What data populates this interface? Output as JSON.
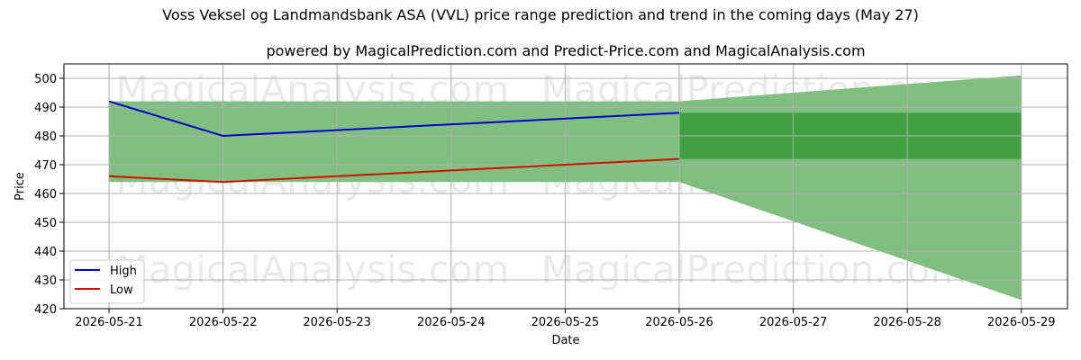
{
  "chart_data": {
    "type": "line",
    "title": "Voss Veksel og Landmandsbank ASA (VVL) price range prediction and trend in the coming days (May 27)",
    "subtitle": "powered by MagicalPrediction.com and Predict-Price.com and MagicalAnalysis.com",
    "xlabel": "Date",
    "ylabel": "Price",
    "x": [
      "2026-05-21",
      "2026-05-22",
      "2026-05-23",
      "2026-05-24",
      "2026-05-25",
      "2026-05-26",
      "2026-05-27",
      "2026-05-28",
      "2026-05-29"
    ],
    "ylim": [
      420,
      505
    ],
    "yticks": [
      420,
      430,
      440,
      450,
      460,
      470,
      480,
      490,
      500
    ],
    "grid": true,
    "legend_position": "lower-left",
    "series": [
      {
        "name": "High",
        "color": "#0000cc",
        "points": [
          [
            "2026-05-21",
            492
          ],
          [
            "2026-05-22",
            480
          ],
          [
            "2026-05-26",
            488
          ]
        ]
      },
      {
        "name": "Low",
        "color": "#cc1100",
        "points": [
          [
            "2026-05-21",
            466
          ],
          [
            "2026-05-22",
            464
          ],
          [
            "2026-05-26",
            472
          ]
        ]
      }
    ],
    "range_band_historic": {
      "color": "#80bf80",
      "from": "2026-05-21",
      "to": "2026-05-26",
      "upper": 492,
      "lower": 464
    },
    "range_band_forecast": {
      "color": "#80bf80",
      "points": [
        {
          "x": "2026-05-26",
          "upper": 492,
          "lower": 464
        },
        {
          "x": "2026-05-29",
          "upper": 501,
          "lower": 423
        }
      ]
    },
    "trend_band": {
      "color": "#3fa13f",
      "from": "2026-05-26",
      "to": "2026-05-29",
      "upper": 488,
      "lower": 472
    },
    "watermarks": [
      "MagicalAnalysis.com",
      "MagicalPrediction.com",
      "MagicalAnalysis.com",
      "MagicalPrediction.com",
      "MagicalAnalysis.com",
      "MagicalPrediction.com"
    ]
  }
}
